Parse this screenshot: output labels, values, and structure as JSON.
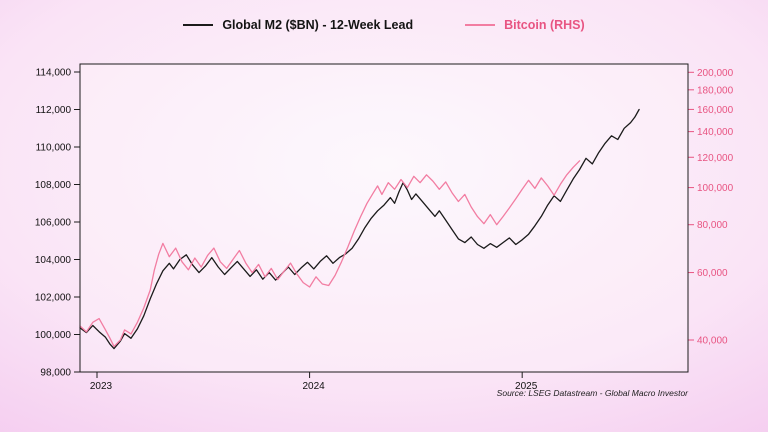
{
  "chart_data": {
    "type": "line",
    "title": "",
    "grid": "off",
    "legend_position": "top-center",
    "legend": [
      {
        "label": "Global M2 ($BN) - 12-Week Lead",
        "color": "#141414"
      },
      {
        "label": "Bitcoin (RHS)",
        "color": "#e85482"
      }
    ],
    "x_axis": {
      "domain": [
        2022.92,
        2025.78
      ],
      "ticks": [
        {
          "t": 2023,
          "label": "2023"
        },
        {
          "t": 2024,
          "label": "2024"
        },
        {
          "t": 2025,
          "label": "2025"
        }
      ]
    },
    "left_axis": {
      "scale": "linear",
      "range": [
        98000,
        114000
      ],
      "color": "#111111",
      "ticks": [
        {
          "v": 98000,
          "label": "98,000"
        },
        {
          "v": 100000,
          "label": "100,000"
        },
        {
          "v": 102000,
          "label": "102,000"
        },
        {
          "v": 104000,
          "label": "104,000"
        },
        {
          "v": 106000,
          "label": "106,000"
        },
        {
          "v": 108000,
          "label": "108,000"
        },
        {
          "v": 110000,
          "label": "110,000"
        },
        {
          "v": 112000,
          "label": "112,000"
        },
        {
          "v": 114000,
          "label": "114,000"
        }
      ]
    },
    "right_axis": {
      "scale": "log",
      "color": "#e85482",
      "ticks": [
        {
          "v": 40000,
          "label": "40,000"
        },
        {
          "v": 60000,
          "label": "60,000"
        },
        {
          "v": 80000,
          "label": "80,000"
        },
        {
          "v": 100000,
          "label": "100,000"
        },
        {
          "v": 120000,
          "label": "120,000"
        },
        {
          "v": 140000,
          "label": "140,000"
        },
        {
          "v": 160000,
          "label": "160,000"
        },
        {
          "v": 180000,
          "label": "180,000"
        },
        {
          "v": 200000,
          "label": "200,000"
        }
      ]
    },
    "series": [
      {
        "name": "Global M2 ($BN) - 12-Week Lead",
        "axis": "left",
        "color": "#1b1b1b",
        "points": [
          [
            2022.92,
            100350
          ],
          [
            2022.95,
            100100
          ],
          [
            2022.98,
            100480
          ],
          [
            2023.01,
            100150
          ],
          [
            2023.04,
            99850
          ],
          [
            2023.06,
            99500
          ],
          [
            2023.08,
            99250
          ],
          [
            2023.11,
            99650
          ],
          [
            2023.13,
            100050
          ],
          [
            2023.16,
            99800
          ],
          [
            2023.19,
            100300
          ],
          [
            2023.22,
            101000
          ],
          [
            2023.25,
            101900
          ],
          [
            2023.28,
            102700
          ],
          [
            2023.31,
            103400
          ],
          [
            2023.34,
            103800
          ],
          [
            2023.36,
            103500
          ],
          [
            2023.39,
            104000
          ],
          [
            2023.42,
            104250
          ],
          [
            2023.45,
            103700
          ],
          [
            2023.48,
            103300
          ],
          [
            2023.51,
            103650
          ],
          [
            2023.54,
            104100
          ],
          [
            2023.57,
            103600
          ],
          [
            2023.6,
            103200
          ],
          [
            2023.63,
            103550
          ],
          [
            2023.66,
            103900
          ],
          [
            2023.69,
            103500
          ],
          [
            2023.72,
            103100
          ],
          [
            2023.75,
            103450
          ],
          [
            2023.78,
            102950
          ],
          [
            2023.81,
            103300
          ],
          [
            2023.84,
            102900
          ],
          [
            2023.87,
            103250
          ],
          [
            2023.9,
            103600
          ],
          [
            2023.93,
            103200
          ],
          [
            2023.96,
            103550
          ],
          [
            2023.99,
            103850
          ],
          [
            2024.02,
            103500
          ],
          [
            2024.05,
            103900
          ],
          [
            2024.08,
            104200
          ],
          [
            2024.11,
            103800
          ],
          [
            2024.14,
            104100
          ],
          [
            2024.17,
            104300
          ],
          [
            2024.2,
            104600
          ],
          [
            2024.23,
            105100
          ],
          [
            2024.26,
            105700
          ],
          [
            2024.29,
            106200
          ],
          [
            2024.32,
            106600
          ],
          [
            2024.35,
            106900
          ],
          [
            2024.38,
            107300
          ],
          [
            2024.4,
            107000
          ],
          [
            2024.42,
            107600
          ],
          [
            2024.44,
            108100
          ],
          [
            2024.46,
            107700
          ],
          [
            2024.48,
            107200
          ],
          [
            2024.5,
            107500
          ],
          [
            2024.53,
            107100
          ],
          [
            2024.56,
            106700
          ],
          [
            2024.59,
            106300
          ],
          [
            2024.61,
            106600
          ],
          [
            2024.64,
            106100
          ],
          [
            2024.67,
            105600
          ],
          [
            2024.7,
            105100
          ],
          [
            2024.73,
            104900
          ],
          [
            2024.76,
            105200
          ],
          [
            2024.79,
            104800
          ],
          [
            2024.82,
            104600
          ],
          [
            2024.85,
            104850
          ],
          [
            2024.88,
            104650
          ],
          [
            2024.91,
            104900
          ],
          [
            2024.94,
            105150
          ],
          [
            2024.97,
            104800
          ],
          [
            2025.0,
            105050
          ],
          [
            2025.03,
            105350
          ],
          [
            2025.06,
            105800
          ],
          [
            2025.09,
            106300
          ],
          [
            2025.12,
            106900
          ],
          [
            2025.15,
            107400
          ],
          [
            2025.18,
            107100
          ],
          [
            2025.21,
            107700
          ],
          [
            2025.24,
            108300
          ],
          [
            2025.27,
            108800
          ],
          [
            2025.3,
            109400
          ],
          [
            2025.33,
            109100
          ],
          [
            2025.36,
            109700
          ],
          [
            2025.39,
            110200
          ],
          [
            2025.42,
            110600
          ],
          [
            2025.45,
            110400
          ],
          [
            2025.48,
            111000
          ],
          [
            2025.51,
            111300
          ],
          [
            2025.53,
            111600
          ],
          [
            2025.55,
            112000
          ]
        ]
      },
      {
        "name": "Bitcoin (RHS)",
        "axis": "right",
        "color": "#f27da2",
        "points": [
          [
            2022.92,
            43500
          ],
          [
            2022.95,
            42000
          ],
          [
            2022.98,
            44500
          ],
          [
            2023.01,
            45500
          ],
          [
            2023.04,
            42500
          ],
          [
            2023.06,
            40500
          ],
          [
            2023.08,
            38500
          ],
          [
            2023.11,
            40000
          ],
          [
            2023.13,
            42500
          ],
          [
            2023.16,
            41500
          ],
          [
            2023.19,
            44500
          ],
          [
            2023.22,
            48500
          ],
          [
            2023.25,
            54000
          ],
          [
            2023.27,
            61000
          ],
          [
            2023.29,
            67000
          ],
          [
            2023.31,
            71500
          ],
          [
            2023.34,
            66000
          ],
          [
            2023.37,
            69500
          ],
          [
            2023.4,
            64000
          ],
          [
            2023.43,
            61000
          ],
          [
            2023.46,
            65500
          ],
          [
            2023.49,
            62000
          ],
          [
            2023.52,
            66500
          ],
          [
            2023.55,
            69500
          ],
          [
            2023.58,
            64000
          ],
          [
            2023.61,
            61500
          ],
          [
            2023.64,
            65000
          ],
          [
            2023.67,
            68500
          ],
          [
            2023.7,
            63500
          ],
          [
            2023.73,
            60000
          ],
          [
            2023.76,
            63000
          ],
          [
            2023.79,
            58500
          ],
          [
            2023.82,
            61500
          ],
          [
            2023.85,
            57500
          ],
          [
            2023.88,
            60500
          ],
          [
            2023.91,
            63500
          ],
          [
            2023.94,
            59500
          ],
          [
            2023.97,
            56500
          ],
          [
            2024.0,
            55000
          ],
          [
            2024.03,
            58500
          ],
          [
            2024.06,
            56000
          ],
          [
            2024.09,
            55500
          ],
          [
            2024.12,
            59000
          ],
          [
            2024.15,
            64000
          ],
          [
            2024.18,
            70000
          ],
          [
            2024.21,
            77000
          ],
          [
            2024.24,
            84000
          ],
          [
            2024.27,
            91000
          ],
          [
            2024.3,
            97000
          ],
          [
            2024.32,
            101000
          ],
          [
            2024.34,
            96000
          ],
          [
            2024.37,
            103000
          ],
          [
            2024.4,
            99000
          ],
          [
            2024.43,
            105000
          ],
          [
            2024.46,
            100000
          ],
          [
            2024.49,
            107000
          ],
          [
            2024.52,
            103000
          ],
          [
            2024.55,
            108000
          ],
          [
            2024.58,
            104000
          ],
          [
            2024.61,
            99000
          ],
          [
            2024.64,
            103500
          ],
          [
            2024.67,
            97000
          ],
          [
            2024.7,
            92000
          ],
          [
            2024.73,
            96000
          ],
          [
            2024.76,
            89000
          ],
          [
            2024.79,
            84000
          ],
          [
            2024.82,
            80500
          ],
          [
            2024.85,
            85000
          ],
          [
            2024.88,
            80000
          ],
          [
            2024.91,
            84000
          ],
          [
            2024.94,
            88500
          ],
          [
            2024.97,
            93500
          ],
          [
            2025.0,
            99000
          ],
          [
            2025.03,
            104500
          ],
          [
            2025.06,
            99500
          ],
          [
            2025.09,
            106000
          ],
          [
            2025.12,
            101000
          ],
          [
            2025.15,
            95500
          ],
          [
            2025.18,
            102000
          ],
          [
            2025.21,
            108000
          ],
          [
            2025.24,
            113000
          ],
          [
            2025.27,
            117500
          ]
        ]
      }
    ],
    "source_note": "Source: LSEG Datastream - Global Macro Investor"
  }
}
